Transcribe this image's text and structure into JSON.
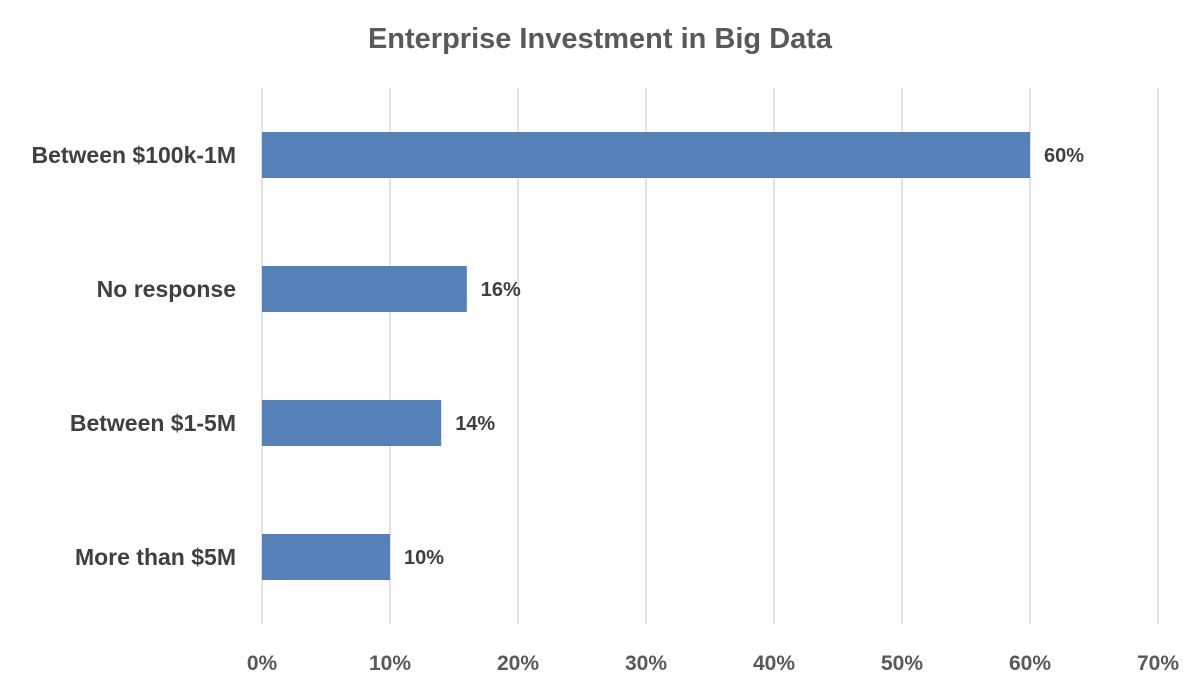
{
  "chart_data": {
    "type": "bar",
    "orientation": "horizontal",
    "title": "Enterprise Investment in Big Data",
    "xlabel": "",
    "ylabel": "",
    "categories": [
      "Between $100k-1M",
      "No response",
      "Between $1-5M",
      "More than $5M"
    ],
    "values": [
      60,
      16,
      14,
      10
    ],
    "data_labels": [
      "60%",
      "16%",
      "14%",
      "10%"
    ],
    "xlim": [
      0,
      70
    ],
    "x_ticks": [
      0,
      10,
      20,
      30,
      40,
      50,
      60,
      70
    ],
    "x_tick_labels": [
      "0%",
      "10%",
      "20%",
      "30%",
      "40%",
      "50%",
      "60%",
      "70%"
    ],
    "grid": "vertical",
    "legend": "none",
    "bar_color": "#5680b8"
  }
}
